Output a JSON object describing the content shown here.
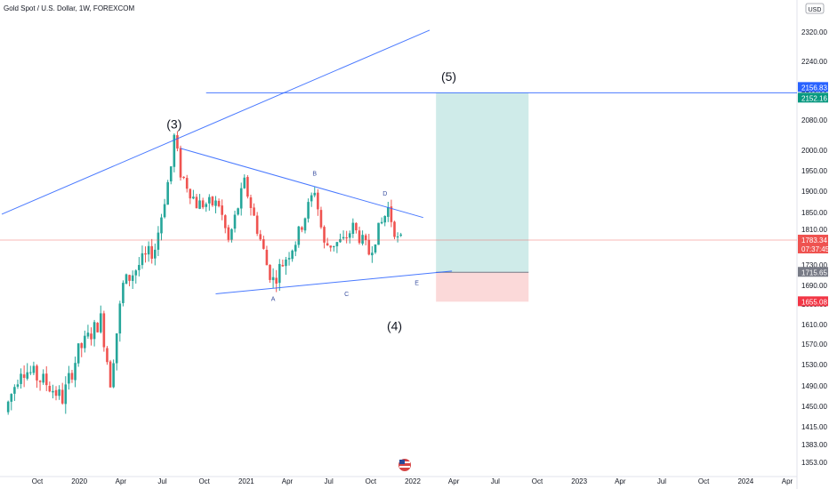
{
  "chart_data": {
    "type": "candlestick",
    "title": "Gold Spot / U.S. Dollar, 1W, FOREXCOM",
    "currency_label": "USD",
    "y_ticks": [
      2320,
      2240,
      2160,
      2080,
      2000,
      1950,
      1900,
      1850,
      1810,
      1770,
      1730,
      1690,
      1650,
      1610,
      1570,
      1530,
      1490,
      1450,
      1415,
      1383,
      1353
    ],
    "x_ticks": [
      {
        "label": "Oct",
        "d": "2019-10-01"
      },
      {
        "label": "2020",
        "d": "2020-01-01"
      },
      {
        "label": "Apr",
        "d": "2020-04-01"
      },
      {
        "label": "Jul",
        "d": "2020-07-01"
      },
      {
        "label": "Oct",
        "d": "2020-10-01"
      },
      {
        "label": "2021",
        "d": "2021-01-01"
      },
      {
        "label": "Apr",
        "d": "2021-04-01"
      },
      {
        "label": "Jul",
        "d": "2021-07-01"
      },
      {
        "label": "Oct",
        "d": "2021-10-01"
      },
      {
        "label": "2022",
        "d": "2022-01-01"
      },
      {
        "label": "Apr",
        "d": "2022-04-01"
      },
      {
        "label": "Jul",
        "d": "2022-07-01"
      },
      {
        "label": "Oct",
        "d": "2022-10-01"
      },
      {
        "label": "2023",
        "d": "2023-01-01"
      },
      {
        "label": "Apr",
        "d": "2023-04-01"
      },
      {
        "label": "Jul",
        "d": "2023-07-01"
      },
      {
        "label": "Oct",
        "d": "2023-10-01"
      },
      {
        "label": "2024",
        "d": "2024-01-01"
      },
      {
        "label": "Apr",
        "d": "2024-04-01"
      }
    ],
    "anchors": [
      {
        "d": "2019-07-29",
        "p": 1440
      },
      {
        "d": "2019-09-02",
        "p": 1525
      },
      {
        "d": "2019-10-28",
        "p": 1495
      },
      {
        "d": "2019-12-02",
        "p": 1465
      },
      {
        "d": "2020-01-06",
        "p": 1555
      },
      {
        "d": "2020-02-24",
        "p": 1620
      },
      {
        "d": "2020-03-16",
        "p": 1500
      },
      {
        "d": "2020-04-13",
        "p": 1690
      },
      {
        "d": "2020-05-18",
        "p": 1730
      },
      {
        "d": "2020-06-22",
        "p": 1765
      },
      {
        "d": "2020-07-27",
        "p": 1960
      },
      {
        "d": "2020-08-03",
        "p": 2035
      },
      {
        "d": "2020-08-17",
        "p": 1945
      },
      {
        "d": "2020-09-21",
        "p": 1870
      },
      {
        "d": "2020-11-09",
        "p": 1870
      },
      {
        "d": "2020-11-30",
        "p": 1780
      },
      {
        "d": "2021-01-04",
        "p": 1920
      },
      {
        "d": "2021-02-22",
        "p": 1730
      },
      {
        "d": "2021-03-08",
        "p": 1700
      },
      {
        "d": "2021-04-26",
        "p": 1780
      },
      {
        "d": "2021-06-07",
        "p": 1905
      },
      {
        "d": "2021-06-28",
        "p": 1770
      },
      {
        "d": "2021-08-09",
        "p": 1780
      },
      {
        "d": "2021-08-30",
        "p": 1815
      },
      {
        "d": "2021-10-04",
        "p": 1755
      },
      {
        "d": "2021-11-15",
        "p": 1860
      },
      {
        "d": "2021-12-06",
        "p": 1783
      }
    ],
    "last_price": 1783.34,
    "countdown": "07:37:45",
    "wave_labels": [
      "(3)",
      "(4)",
      "(5)"
    ],
    "point_labels": [
      "A",
      "B",
      "C",
      "D",
      "E"
    ],
    "target_level": 2156.83,
    "target_level_2": 2152.16,
    "entry_level": 1715.65,
    "stop_level": 1655.08
  }
}
